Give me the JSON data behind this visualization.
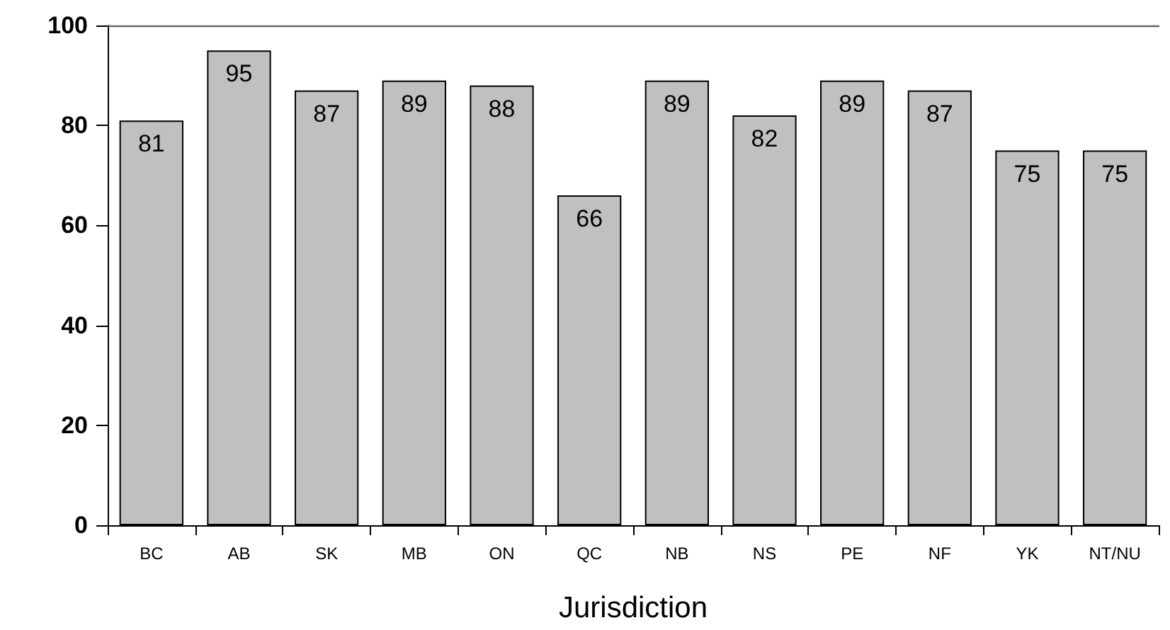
{
  "chart_data": {
    "type": "bar",
    "xlabel": "Jurisdiction",
    "categories": [
      "BC",
      "AB",
      "SK",
      "MB",
      "ON",
      "QC",
      "NB",
      "NS",
      "PE",
      "NF",
      "YK",
      "NT/NU"
    ],
    "values": [
      81,
      95,
      87,
      89,
      88,
      66,
      89,
      82,
      89,
      87,
      75,
      75
    ],
    "color": "#c0c0c0",
    "ylim": [
      0,
      100
    ],
    "yticks": [
      0,
      20,
      40,
      60,
      80,
      100
    ],
    "data_labels": true
  }
}
